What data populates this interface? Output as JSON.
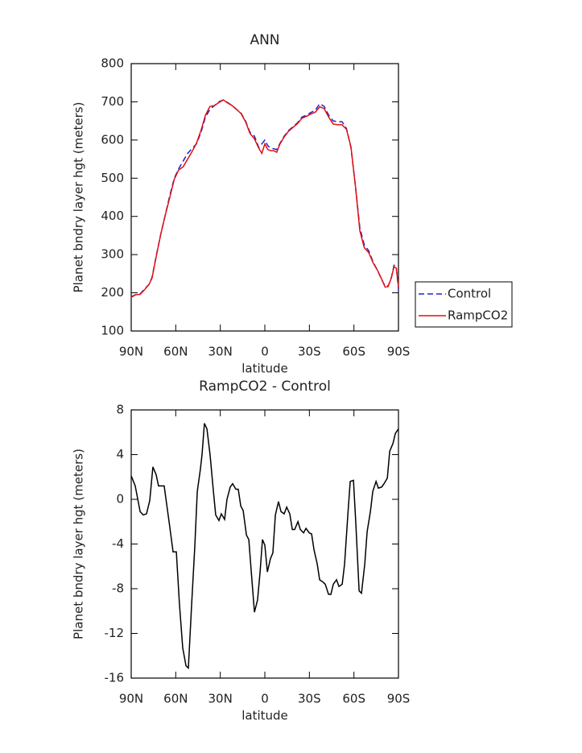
{
  "chart_data": [
    {
      "type": "line",
      "title": "ANN",
      "xlabel": "latitude",
      "ylabel": "Planet bndry layer hgt (meters)",
      "x": [
        90,
        87,
        84,
        81,
        78,
        76,
        73,
        70,
        67,
        64,
        61,
        58,
        55,
        52,
        49,
        46,
        43,
        40,
        37,
        34,
        31,
        28,
        25,
        22,
        19,
        16,
        13,
        10,
        7,
        4,
        2,
        0,
        -2,
        -4,
        -6,
        -8,
        -10,
        -13,
        -16,
        -19,
        -22,
        -25,
        -28,
        -31,
        -34,
        -37,
        -40,
        -43,
        -46,
        -49,
        -52,
        -55,
        -58,
        -61,
        -64,
        -67,
        -70,
        -73,
        -76,
        -79,
        -81,
        -83,
        -85,
        -87,
        -88.5,
        -90
      ],
      "series": [
        {
          "name": "Control",
          "color": "#2222cc",
          "linestyle": "dashed",
          "values": [
            190,
            195,
            197,
            210,
            222,
            240,
            300,
            355,
            405,
            455,
            500,
            525,
            545,
            565,
            578,
            590,
            620,
            660,
            680,
            690,
            700,
            705,
            698,
            690,
            680,
            670,
            650,
            620,
            610,
            580,
            590,
            600,
            585,
            578,
            577,
            575,
            590,
            610,
            625,
            635,
            645,
            660,
            665,
            672,
            678,
            695,
            688,
            665,
            650,
            648,
            648,
            630,
            580,
            480,
            370,
            325,
            310,
            280,
            258,
            232,
            218,
            218,
            235,
            272,
            268,
            210
          ]
        },
        {
          "name": "RampCO2",
          "color": "#e01010",
          "linestyle": "solid",
          "values": [
            188,
            195,
            196,
            208,
            222,
            238,
            298,
            355,
            404,
            450,
            497,
            522,
            530,
            550,
            570,
            592,
            625,
            665,
            688,
            690,
            698,
            705,
            697,
            690,
            680,
            669,
            648,
            617,
            603,
            578,
            565,
            590,
            575,
            572,
            572,
            568,
            588,
            608,
            623,
            633,
            643,
            657,
            662,
            668,
            673,
            687,
            682,
            660,
            642,
            640,
            640,
            628,
            582,
            480,
            362,
            318,
            305,
            278,
            258,
            233,
            215,
            216,
            237,
            268,
            265,
            215
          ]
        }
      ],
      "xlim": [
        90,
        -90
      ],
      "xticks": [
        {
          "value": 90,
          "label": "90N"
        },
        {
          "value": 60,
          "label": "60N"
        },
        {
          "value": 30,
          "label": "30N"
        },
        0,
        {
          "value": -30,
          "label": "30S"
        },
        {
          "value": -60,
          "label": "60S"
        },
        {
          "value": -90,
          "label": "90S"
        }
      ],
      "ylim": [
        100,
        800
      ],
      "yticks": [
        100,
        200,
        300,
        400,
        500,
        600,
        700,
        800
      ],
      "legend": "outside-right"
    },
    {
      "type": "line",
      "title": "RampCO2 - Control",
      "xlabel": "latitude",
      "ylabel": "Planet bndry layer hgt (meters)",
      "x": [
        90,
        87.3,
        84,
        81.9,
        79.7,
        77.5,
        75.4,
        73.2,
        71.6,
        67.8,
        64,
        61.8,
        59.6,
        57.5,
        55.3,
        53.1,
        51.5,
        49.3,
        47.2,
        45.5,
        43.4,
        42.3,
        40.7,
        39,
        36.9,
        34.7,
        33.1,
        30.9,
        29.3,
        27.1,
        25.5,
        23.3,
        21.7,
        19.5,
        17.9,
        16.2,
        14.6,
        12.4,
        10.8,
        8.6,
        7,
        4.9,
        3.2,
        1.6,
        0,
        -1.7,
        -3.8,
        -5.4,
        -7.1,
        -9.2,
        -10.9,
        -13,
        -14.7,
        -16.8,
        -18.5,
        -20.1,
        -22.3,
        -23.9,
        -26.1,
        -27.7,
        -29.9,
        -31.5,
        -33.1,
        -35.3,
        -36.9,
        -39.1,
        -40.7,
        -42.9,
        -44.5,
        -46.1,
        -48.3,
        -49.9,
        -52.1,
        -53.7,
        -55.9,
        -57.5,
        -59.7,
        -61.3,
        -63.5,
        -65.1,
        -67.3,
        -68.9,
        -71.1,
        -72.7,
        -74.9,
        -76.5,
        -78.7,
        -80.3,
        -82.5,
        -84.1,
        -86.3,
        -87.9,
        -90
      ],
      "values": [
        2.1,
        1.2,
        -1.1,
        -1.4,
        -1.3,
        -0.1,
        2.9,
        2.2,
        1.2,
        1.2,
        -2.5,
        -4.7,
        -4.7,
        -9.4,
        -13.3,
        -14.9,
        -15.1,
        -9.4,
        -4.3,
        0.7,
        2.7,
        4,
        6.8,
        6.3,
        4,
        0.8,
        -1.4,
        -1.9,
        -1.3,
        -1.8,
        0,
        1.1,
        1.4,
        0.9,
        0.9,
        -0.6,
        -1,
        -3.2,
        -3.6,
        -7.4,
        -10.1,
        -9,
        -6.5,
        -3.6,
        -4.1,
        -6.5,
        -5.3,
        -4.8,
        -1.4,
        -0.2,
        -1.1,
        -1.3,
        -0.7,
        -1.3,
        -2.7,
        -2.7,
        -2,
        -2.7,
        -3,
        -2.6,
        -3,
        -3.1,
        -4.5,
        -5.8,
        -7.2,
        -7.4,
        -7.6,
        -8.5,
        -8.5,
        -7.6,
        -7.2,
        -7.8,
        -7.6,
        -5.8,
        -1.4,
        1.6,
        1.7,
        -2.2,
        -8.2,
        -8.4,
        -5.8,
        -2.9,
        -1.1,
        0.7,
        1.6,
        1,
        1.1,
        1.4,
        1.9,
        4.3,
        5,
        5.9,
        6.3
      ],
      "color": "#000000",
      "xlim": [
        90,
        -90
      ],
      "xticks": [
        {
          "value": 90,
          "label": "90N"
        },
        {
          "value": 60,
          "label": "60N"
        },
        {
          "value": 30,
          "label": "30N"
        },
        0,
        {
          "value": -30,
          "label": "30S"
        },
        {
          "value": -60,
          "label": "60S"
        },
        {
          "value": -90,
          "label": "90S"
        }
      ],
      "ylim": [
        -16,
        8
      ],
      "yticks": [
        -16,
        -12,
        -8,
        -4,
        0,
        4,
        8
      ]
    }
  ]
}
